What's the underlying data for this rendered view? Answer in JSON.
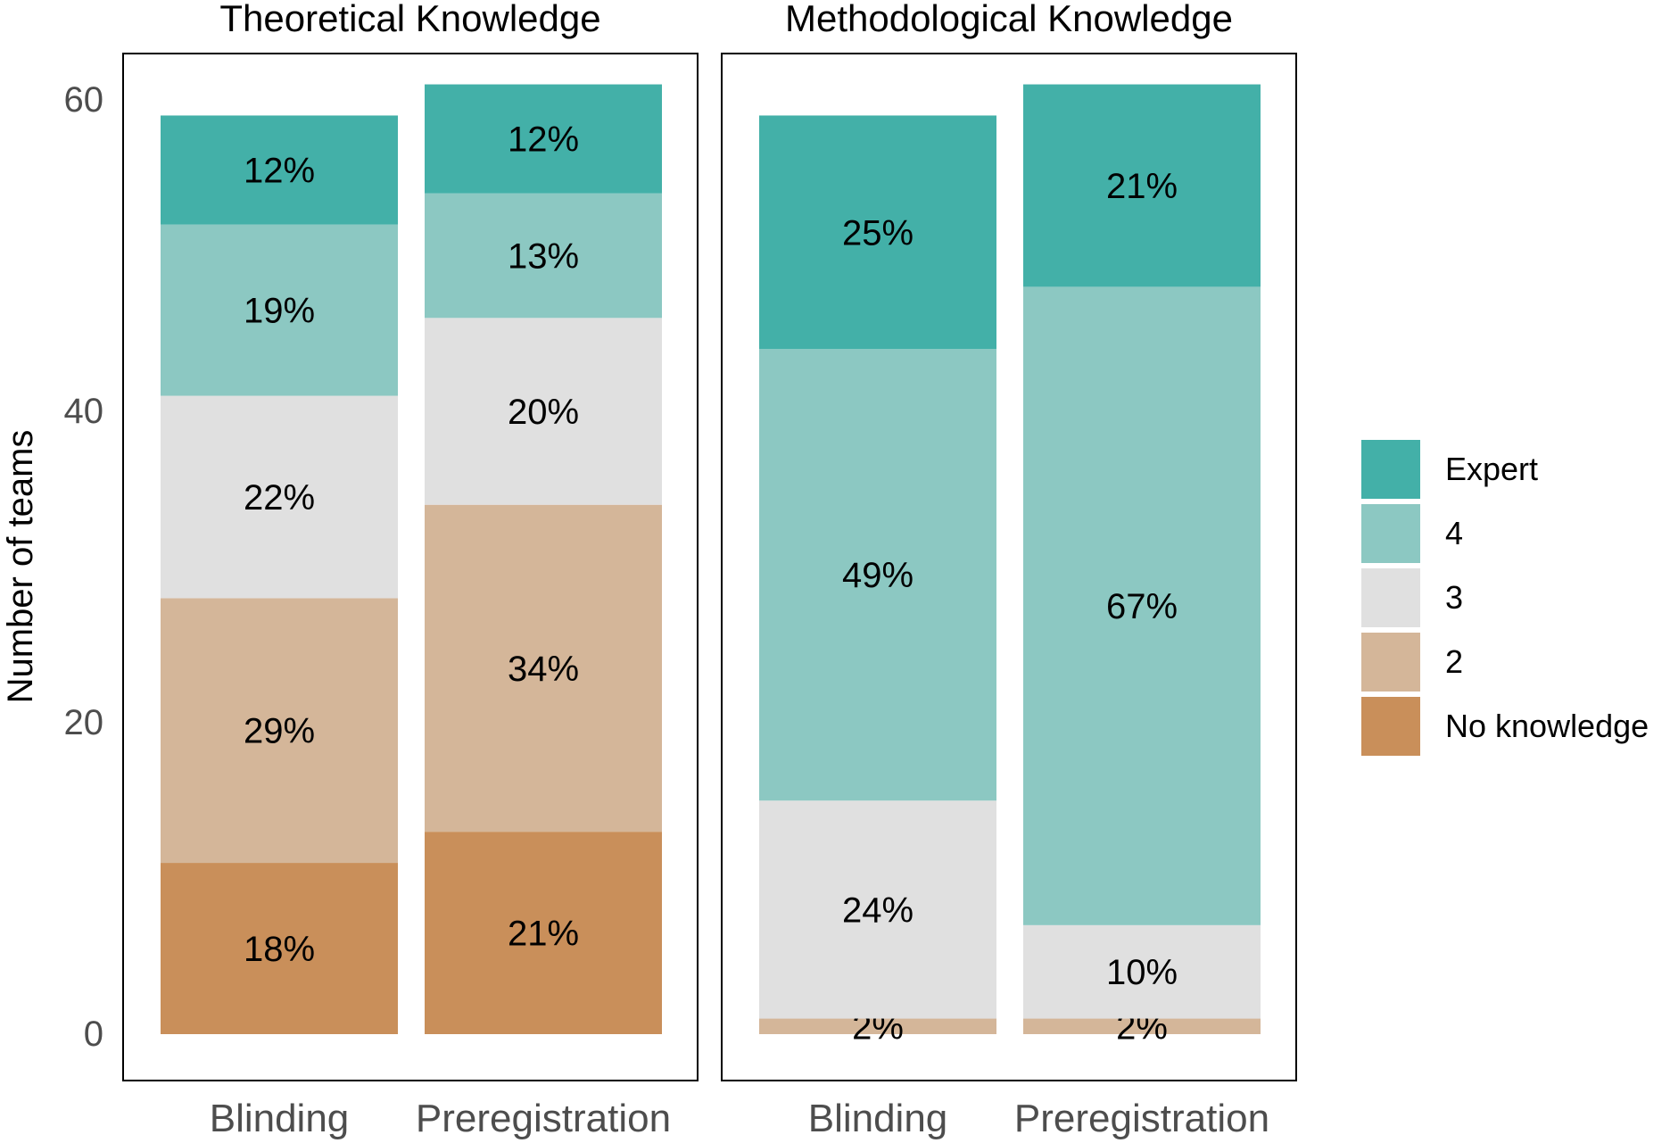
{
  "chart_data": {
    "type": "bar",
    "stacked": true,
    "ylabel": "Number of teams",
    "ylim": [
      -3,
      64
    ],
    "yticks": [
      0,
      20,
      40,
      60
    ],
    "categories": [
      "Blinding",
      "Preregistration"
    ],
    "legend": {
      "position": "right",
      "entries": [
        {
          "label": "Expert",
          "color": "#43B0A8"
        },
        {
          "label": "4",
          "color": "#8CC8C2"
        },
        {
          "label": "3",
          "color": "#E0E0E0"
        },
        {
          "label": "2",
          "color": "#D4B699"
        },
        {
          "label": "No knowledge",
          "color": "#C98F5A"
        }
      ]
    },
    "panels": [
      {
        "title": "Theoretical Knowledge",
        "bars": [
          {
            "category": "Blinding",
            "segments": [
              {
                "level": "No knowledge",
                "value": 11,
                "label": "18%"
              },
              {
                "level": "2",
                "value": 17,
                "label": "29%"
              },
              {
                "level": "3",
                "value": 13,
                "label": "22%"
              },
              {
                "level": "4",
                "value": 11,
                "label": "19%"
              },
              {
                "level": "Expert",
                "value": 7,
                "label": "12%"
              }
            ]
          },
          {
            "category": "Preregistration",
            "segments": [
              {
                "level": "No knowledge",
                "value": 13,
                "label": "21%"
              },
              {
                "level": "2",
                "value": 21,
                "label": "34%"
              },
              {
                "level": "3",
                "value": 12,
                "label": "20%"
              },
              {
                "level": "4",
                "value": 8,
                "label": "13%"
              },
              {
                "level": "Expert",
                "value": 7,
                "label": "12%"
              }
            ]
          }
        ]
      },
      {
        "title": "Methodological Knowledge",
        "bars": [
          {
            "category": "Blinding",
            "segments": [
              {
                "level": "No knowledge",
                "value": 0,
                "label": ""
              },
              {
                "level": "2",
                "value": 1,
                "label": "2%"
              },
              {
                "level": "3",
                "value": 14,
                "label": "24%"
              },
              {
                "level": "4",
                "value": 29,
                "label": "49%"
              },
              {
                "level": "Expert",
                "value": 15,
                "label": "25%"
              }
            ]
          },
          {
            "category": "Preregistration",
            "segments": [
              {
                "level": "No knowledge",
                "value": 0,
                "label": ""
              },
              {
                "level": "2",
                "value": 1,
                "label": "2%"
              },
              {
                "level": "3",
                "value": 6,
                "label": "10%"
              },
              {
                "level": "4",
                "value": 41,
                "label": "67%"
              },
              {
                "level": "Expert",
                "value": 13,
                "label": "21%"
              }
            ]
          }
        ]
      }
    ]
  }
}
